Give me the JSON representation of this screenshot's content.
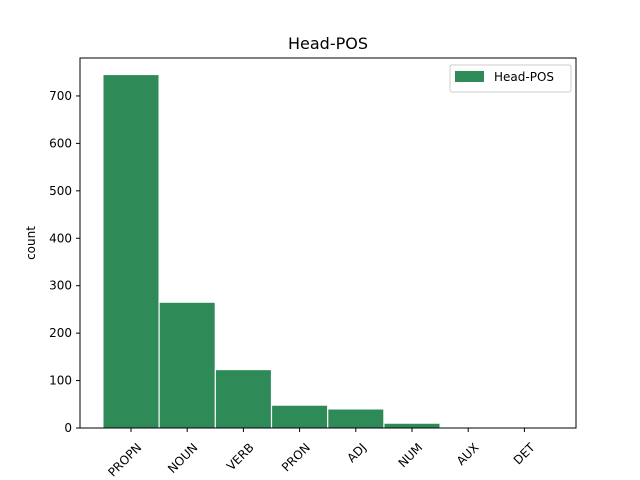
{
  "chart_data": {
    "type": "bar",
    "title": "Head-POS",
    "xlabel": "",
    "ylabel": "count",
    "categories": [
      "PROPN",
      "NOUN",
      "VERB",
      "PRON",
      "ADJ",
      "NUM",
      "AUX",
      "DET"
    ],
    "series": [
      {
        "name": "Head-POS",
        "values": [
          745,
          265,
          123,
          48,
          40,
          10,
          1,
          1
        ]
      }
    ],
    "ylim": [
      0,
      780
    ],
    "yticks": [
      0,
      100,
      200,
      300,
      400,
      500,
      600,
      700
    ],
    "grid": false,
    "legend": "top-right",
    "colors": {
      "bar": "#2e8b57",
      "bar_edge": "#ffffff",
      "axes": "#000000"
    }
  }
}
